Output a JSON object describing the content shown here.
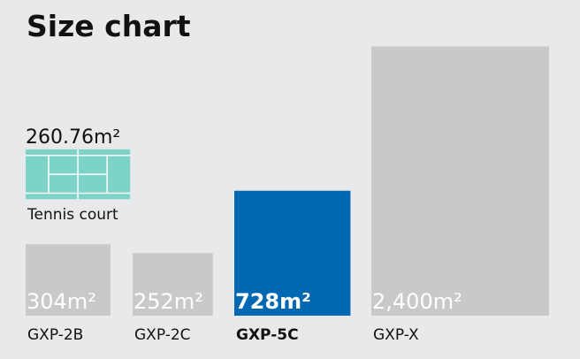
{
  "chart_data": {
    "type": "area-squares",
    "title": "Size chart",
    "categories": [
      "GXP-2B",
      "GXP-2C",
      "GXP-5C",
      "GXP-X"
    ],
    "values": [
      304,
      252,
      728,
      2400
    ],
    "value_labels": [
      "304m²",
      "252m²",
      "728m²",
      "2,400m²"
    ],
    "colors": [
      "#c8c9cb",
      "#c8c9cb",
      "#0068b3",
      "#c8c9cb"
    ],
    "highlight": [
      false,
      false,
      true,
      false
    ],
    "reference": {
      "name": "Tennis court",
      "value": 260.76,
      "value_label": "260.76m²",
      "color": "#7dd3c8"
    }
  }
}
